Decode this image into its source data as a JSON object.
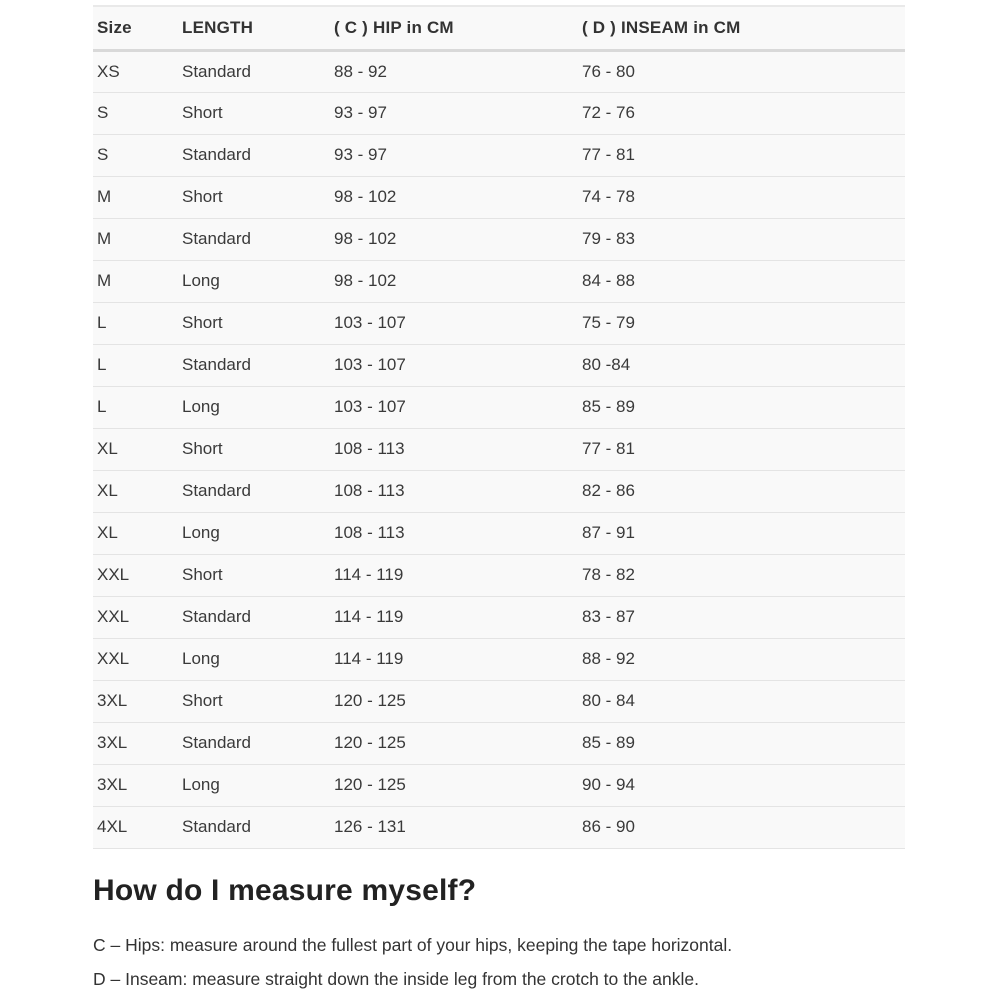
{
  "table": {
    "column_keys": [
      "size",
      "length",
      "hip",
      "inseam"
    ],
    "headers": [
      "Size",
      "LENGTH",
      "( C ) HIP in CM",
      "( D ) INSEAM in CM"
    ],
    "rows": [
      [
        "XS",
        "Standard",
        "88 - 92",
        "76 - 80"
      ],
      [
        "S",
        "Short",
        "93 - 97",
        "72 - 76"
      ],
      [
        "S",
        "Standard",
        "93 - 97",
        "77 - 81"
      ],
      [
        "M",
        "Short",
        "98 - 102",
        "74 - 78"
      ],
      [
        "M",
        "Standard",
        "98 - 102",
        "79 - 83"
      ],
      [
        "M",
        "Long",
        "98 - 102",
        "84 - 88"
      ],
      [
        "L",
        "Short",
        "103 - 107",
        "75 - 79"
      ],
      [
        "L",
        "Standard",
        "103 - 107",
        "80 -84"
      ],
      [
        "L",
        "Long",
        "103 - 107",
        "85 - 89"
      ],
      [
        "XL",
        "Short",
        "108 - 113",
        "77 - 81"
      ],
      [
        "XL",
        "Standard",
        "108 - 113",
        "82 - 86"
      ],
      [
        "XL",
        "Long",
        "108 - 113",
        "87 - 91"
      ],
      [
        "XXL",
        "Short",
        "114 - 119",
        "78 - 82"
      ],
      [
        "XXL",
        "Standard",
        "114 - 119",
        "83 - 87"
      ],
      [
        "XXL",
        "Long",
        "114 - 119",
        "88 - 92"
      ],
      [
        "3XL",
        "Short",
        "120 - 125",
        "80 - 84"
      ],
      [
        "3XL",
        "Standard",
        "120 - 125",
        "85 - 89"
      ],
      [
        "3XL",
        "Long",
        "120 - 125",
        "90 - 94"
      ],
      [
        "4XL",
        "Standard",
        "126 - 131",
        "86 - 90"
      ]
    ]
  },
  "measure_section": {
    "title": "How do I measure myself?",
    "lines": [
      "C – Hips: measure around the fullest part of your hips, keeping the tape horizontal.",
      "D – Inseam: measure straight down the inside leg from the crotch to the ankle."
    ]
  },
  "colors": {
    "page_background": "#ffffff",
    "table_background": "#f9f9f9",
    "row_border": "#e4e4e4",
    "header_border": "#d9d9d9",
    "text": "#3a3a3a",
    "heading_text": "#222222"
  }
}
